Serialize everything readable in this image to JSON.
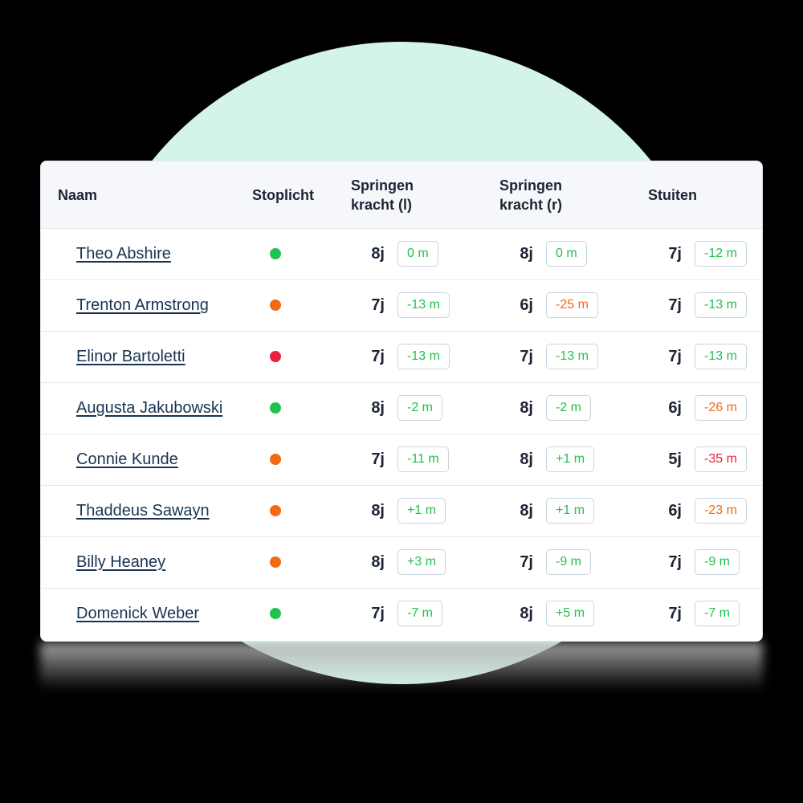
{
  "colors": {
    "background_circle": "#d4f4e8",
    "header_bg": "#f6f7fa",
    "link": "#1a3352",
    "green": "#1fc24c",
    "orange": "#f26a12",
    "red": "#e8203a"
  },
  "table": {
    "headers": {
      "naam": "Naam",
      "stoplicht": "Stoplicht",
      "springen_l": "Springen\nkracht (l)",
      "springen_r": "Springen\nkracht (r)",
      "stuiten": "Stuiten"
    },
    "rows": [
      {
        "name": "Theo Abshire",
        "light": "green",
        "l_age": "8j",
        "l_val": "0 m",
        "l_color": "green",
        "r_age": "8j",
        "r_val": "0 m",
        "r_color": "green",
        "s_age": "7j",
        "s_val": "-12 m",
        "s_color": "green"
      },
      {
        "name": "Trenton Armstrong",
        "light": "orange",
        "l_age": "7j",
        "l_val": "-13 m",
        "l_color": "green",
        "r_age": "6j",
        "r_val": "-25 m",
        "r_color": "orange",
        "s_age": "7j",
        "s_val": "-13 m",
        "s_color": "green"
      },
      {
        "name": "Elinor Bartoletti",
        "light": "red",
        "l_age": "7j",
        "l_val": "-13 m",
        "l_color": "green",
        "r_age": "7j",
        "r_val": "-13 m",
        "r_color": "green",
        "s_age": "7j",
        "s_val": "-13 m",
        "s_color": "green"
      },
      {
        "name": "Augusta Jakubowski",
        "light": "green",
        "l_age": "8j",
        "l_val": "-2 m",
        "l_color": "green",
        "r_age": "8j",
        "r_val": "-2 m",
        "r_color": "green",
        "s_age": "6j",
        "s_val": "-26 m",
        "s_color": "orange"
      },
      {
        "name": "Connie Kunde",
        "light": "orange",
        "l_age": "7j",
        "l_val": "-11 m",
        "l_color": "green",
        "r_age": "8j",
        "r_val": "+1 m",
        "r_color": "green",
        "s_age": "5j",
        "s_val": "-35 m",
        "s_color": "red"
      },
      {
        "name": "Thaddeus Sawayn",
        "light": "orange",
        "l_age": "8j",
        "l_val": "+1 m",
        "l_color": "green",
        "r_age": "8j",
        "r_val": "+1 m",
        "r_color": "green",
        "s_age": "6j",
        "s_val": "-23 m",
        "s_color": "orange"
      },
      {
        "name": "Billy Heaney",
        "light": "orange",
        "l_age": "8j",
        "l_val": "+3 m",
        "l_color": "green",
        "r_age": "7j",
        "r_val": "-9 m",
        "r_color": "green",
        "s_age": "7j",
        "s_val": "-9 m",
        "s_color": "green"
      },
      {
        "name": "Domenick Weber",
        "light": "green",
        "l_age": "7j",
        "l_val": "-7 m",
        "l_color": "green",
        "r_age": "8j",
        "r_val": "+5 m",
        "r_color": "green",
        "s_age": "7j",
        "s_val": "-7 m",
        "s_color": "green"
      }
    ]
  }
}
